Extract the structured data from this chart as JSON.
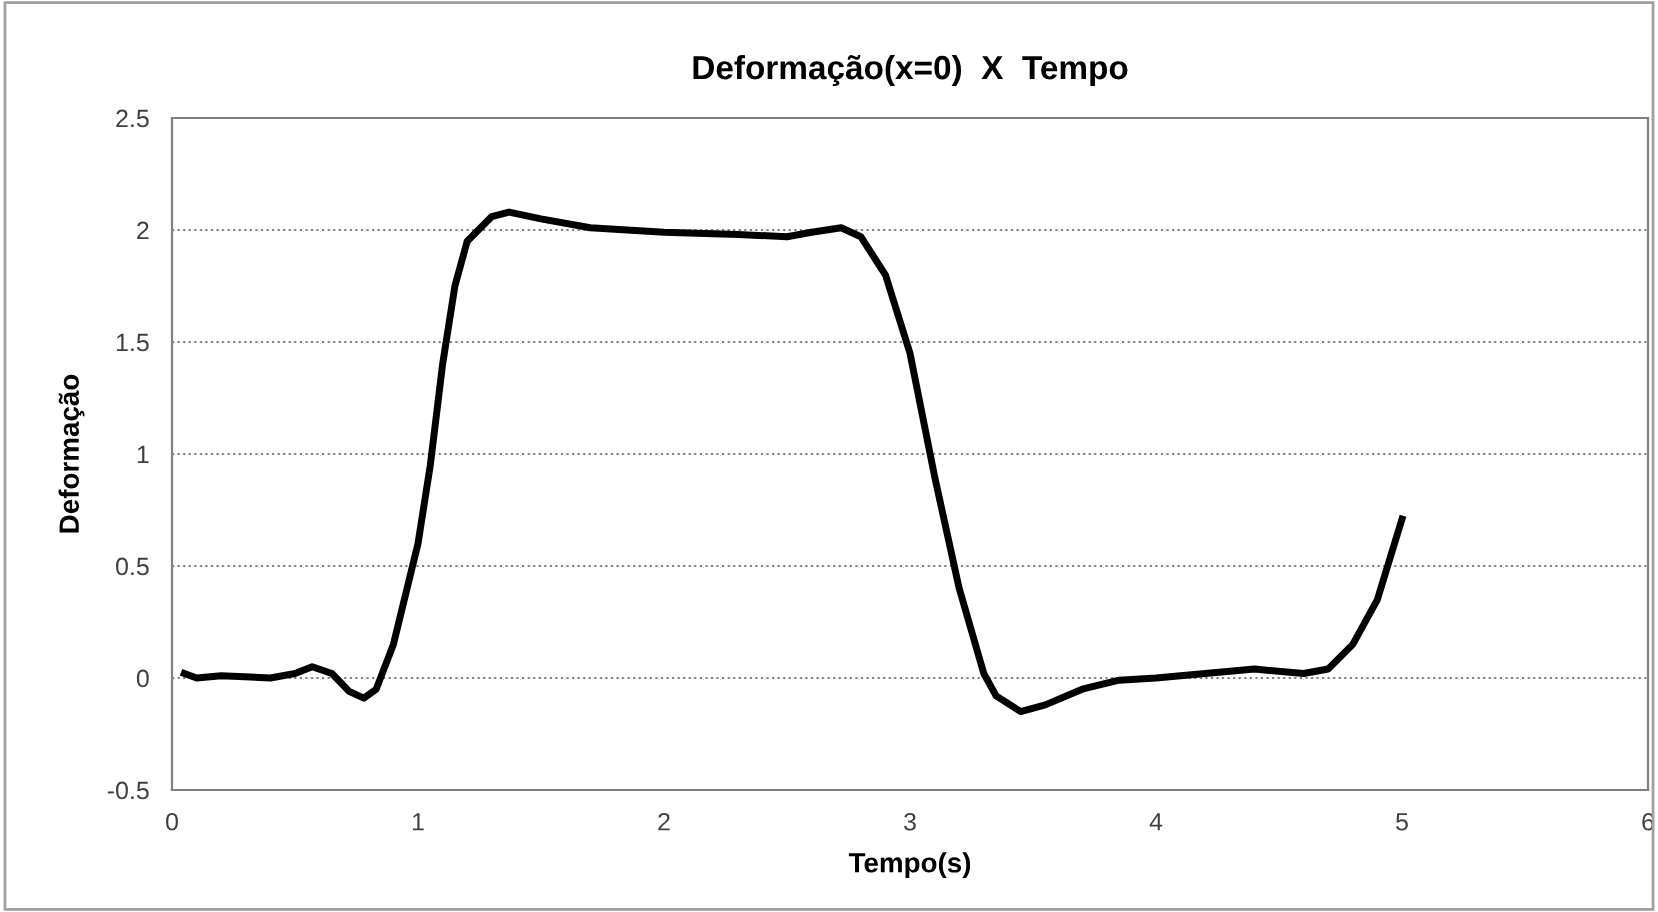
{
  "chart_data": {
    "type": "line",
    "title": "Deformação(x=0)  X  Tempo",
    "xlabel": "Tempo(s)",
    "ylabel": "Deformação",
    "xlim": [
      0,
      6
    ],
    "xticks": [
      0,
      1,
      2,
      3,
      4,
      5,
      6
    ],
    "ylim": [
      -0.5,
      2.5
    ],
    "yticks": [
      -0.5,
      0,
      0.5,
      1,
      1.5,
      2,
      2.5
    ],
    "grid": "y",
    "marker": "none",
    "line_style": "solid",
    "series": [
      {
        "color": "#000000",
        "x": [
          0.05,
          0.1,
          0.2,
          0.4,
          0.5,
          0.57,
          0.65,
          0.72,
          0.78,
          0.83,
          0.9,
          1.0,
          1.05,
          1.1,
          1.15,
          1.2,
          1.3,
          1.37,
          1.5,
          1.7,
          2.0,
          2.3,
          2.5,
          2.6,
          2.72,
          2.8,
          2.9,
          3.0,
          3.1,
          3.2,
          3.3,
          3.35,
          3.45,
          3.55,
          3.7,
          3.85,
          4.0,
          4.2,
          4.4,
          4.6,
          4.7,
          4.8,
          4.9,
          5.0
        ],
        "values": [
          0.02,
          0.0,
          0.01,
          0.0,
          0.02,
          0.05,
          0.02,
          -0.06,
          -0.09,
          -0.05,
          0.15,
          0.6,
          0.95,
          1.4,
          1.75,
          1.95,
          2.06,
          2.08,
          2.05,
          2.01,
          1.99,
          1.98,
          1.97,
          1.99,
          2.01,
          1.97,
          1.8,
          1.45,
          0.9,
          0.4,
          0.02,
          -0.08,
          -0.15,
          -0.12,
          -0.05,
          -0.01,
          0.0,
          0.02,
          0.04,
          0.02,
          0.04,
          0.15,
          0.35,
          0.71
        ]
      }
    ]
  }
}
